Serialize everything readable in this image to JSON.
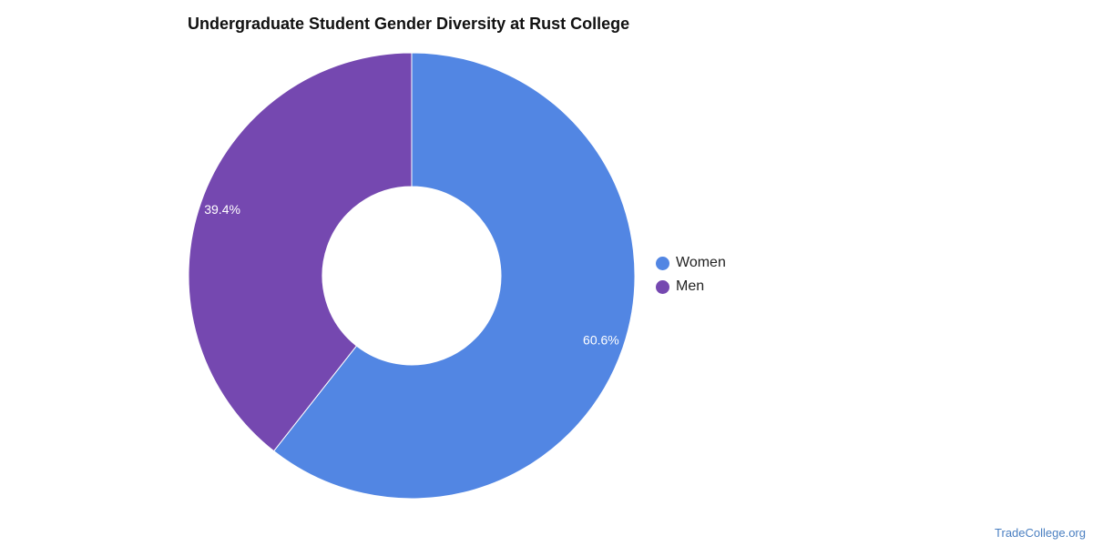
{
  "chart_data": {
    "type": "pie",
    "title": "Undergraduate Student Gender Diversity at Rust College",
    "categories": [
      "Women",
      "Men"
    ],
    "values": [
      60.6,
      39.4
    ],
    "labels": [
      "60.6%",
      "39.4%"
    ],
    "colors": [
      "#5286e3",
      "#7548b0"
    ],
    "donut": true,
    "legend_position": "right"
  },
  "watermark": "TradeCollege.org"
}
